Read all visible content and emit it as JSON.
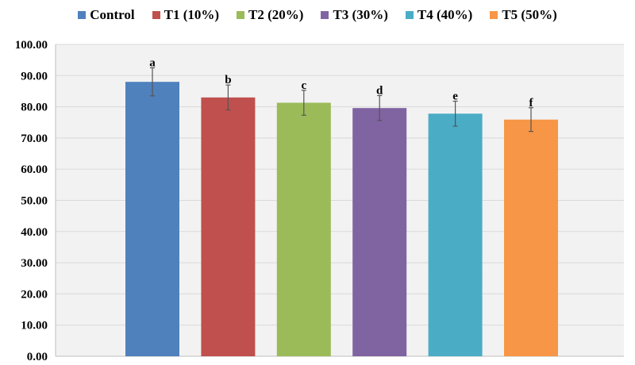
{
  "chart_data": {
    "type": "bar",
    "title": "",
    "xlabel": "",
    "ylabel": "",
    "ylim": [
      0,
      100
    ],
    "yticks": [
      "0.00",
      "10.00",
      "20.00",
      "30.00",
      "40.00",
      "50.00",
      "60.00",
      "70.00",
      "80.00",
      "90.00",
      "100.00"
    ],
    "grid": true,
    "legend_position": "top",
    "series": [
      {
        "name": "Control",
        "value": 88.0,
        "error": 4.5,
        "significance": "a",
        "color": "#4F81BD"
      },
      {
        "name": "T1 (10%)",
        "value": 83.0,
        "error": 4.0,
        "significance": "b",
        "color": "#C0504D"
      },
      {
        "name": "T2 (20%)",
        "value": 81.3,
        "error": 4.0,
        "significance": "c",
        "color": "#9BBB59"
      },
      {
        "name": "T3 (30%)",
        "value": 79.6,
        "error": 4.0,
        "significance": "d",
        "color": "#8064A2"
      },
      {
        "name": "T4 (40%)",
        "value": 77.8,
        "error": 4.0,
        "significance": "e",
        "color": "#4BACC6"
      },
      {
        "name": "T5 (50%)",
        "value": 75.9,
        "error": 3.8,
        "significance": "f",
        "color": "#F79646"
      }
    ]
  }
}
